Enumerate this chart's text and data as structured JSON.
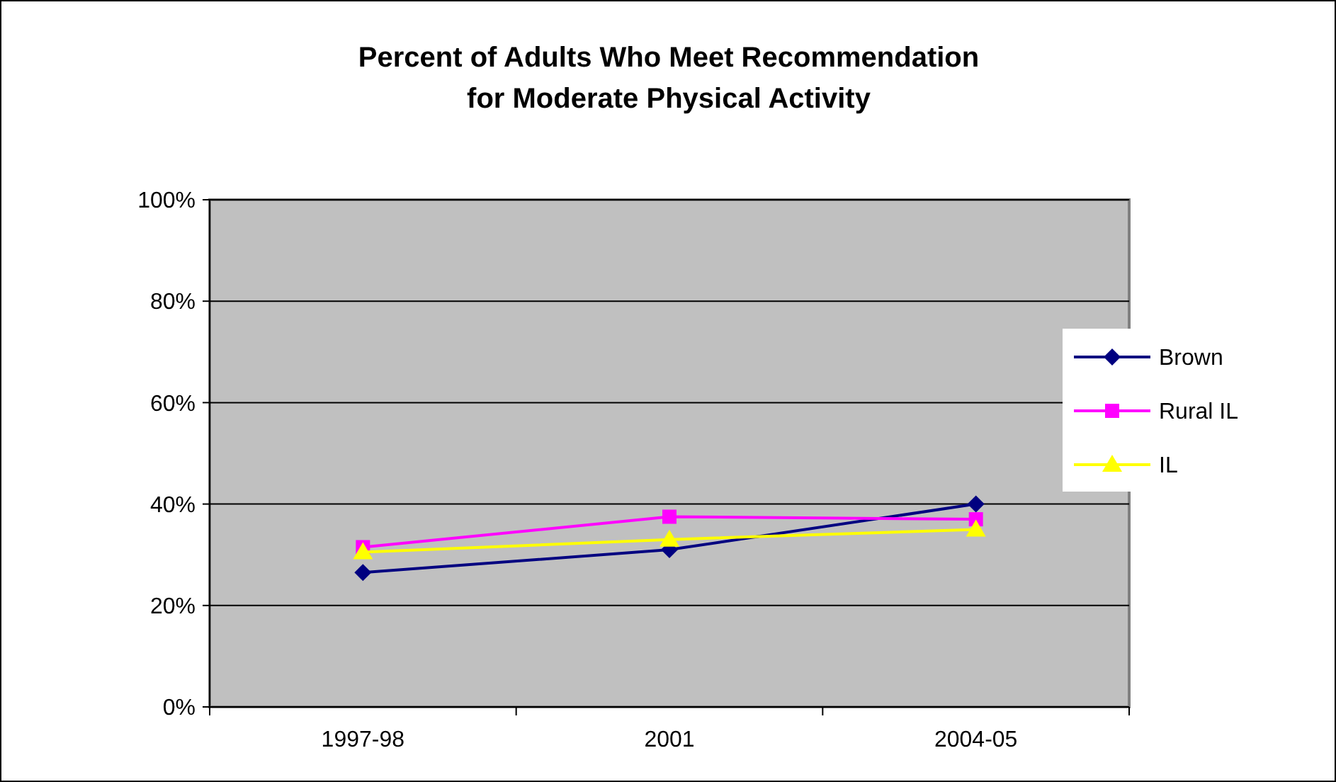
{
  "chart_data": {
    "type": "line",
    "title": "Percent of Adults Who Meet Recommendation\nfor Moderate Physical Activity",
    "categories": [
      "1997-98",
      "2001",
      "2004-05"
    ],
    "series": [
      {
        "name": "Brown",
        "color": "#000080",
        "marker": "diamond",
        "values": [
          26.5,
          31,
          40
        ]
      },
      {
        "name": "Rural IL",
        "color": "#ff00ff",
        "marker": "square",
        "values": [
          31.5,
          37.5,
          37
        ]
      },
      {
        "name": "IL",
        "color": "#ffff00",
        "marker": "triangle",
        "values": [
          30.5,
          33,
          35
        ]
      }
    ],
    "ylim": [
      0,
      100
    ],
    "yticks": [
      {
        "value": 0,
        "label": "0%"
      },
      {
        "value": 20,
        "label": "20%"
      },
      {
        "value": 40,
        "label": "40%"
      },
      {
        "value": 60,
        "label": "60%"
      },
      {
        "value": 80,
        "label": "80%"
      },
      {
        "value": 100,
        "label": "100%"
      }
    ],
    "grid": "y",
    "legend": "right"
  }
}
